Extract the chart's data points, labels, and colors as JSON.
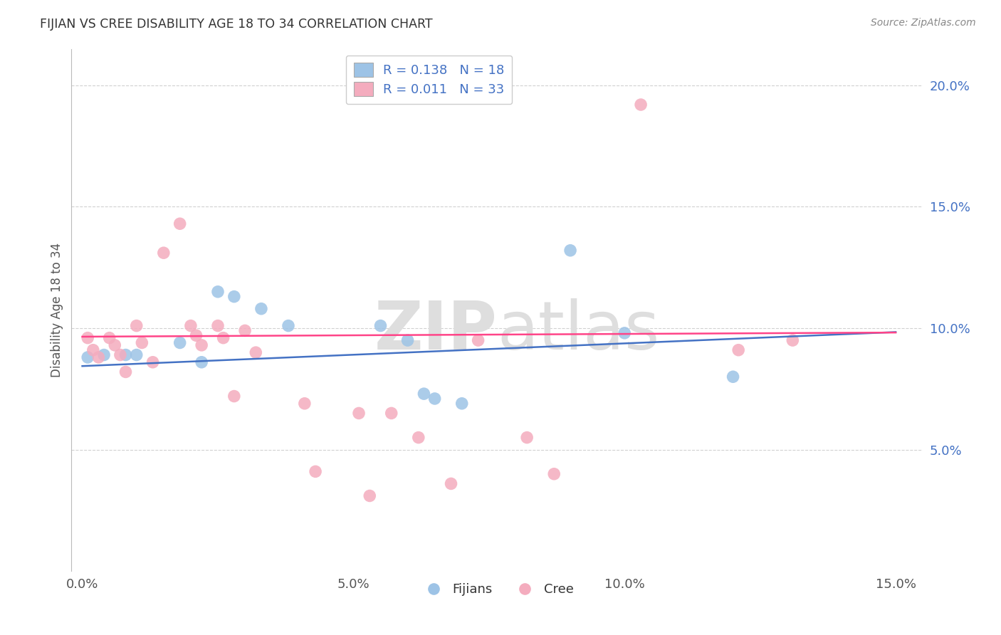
{
  "title": "FIJIAN VS CREE DISABILITY AGE 18 TO 34 CORRELATION CHART",
  "source": "Source: ZipAtlas.com",
  "ylabel": "Disability Age 18 to 34",
  "xlim": [
    -0.002,
    0.155
  ],
  "ylim": [
    0.0,
    0.215
  ],
  "yticks": [
    0.05,
    0.1,
    0.15,
    0.2
  ],
  "xticks": [
    0.0,
    0.05,
    0.1,
    0.15
  ],
  "fijian_R": "0.138",
  "fijian_N": "18",
  "cree_R": "0.011",
  "cree_N": "33",
  "fijian_scatter_color": "#9DC3E6",
  "cree_scatter_color": "#F4ACBE",
  "fijian_line_color": "#4472C4",
  "cree_line_color": "#FF4488",
  "watermark_color": "#DEDEDE",
  "background_color": "#FFFFFF",
  "grid_color": "#CCCCCC",
  "title_color": "#333333",
  "axis_label_color": "#4472C4",
  "tick_label_color": "#555555",
  "source_color": "#888888",
  "fijian_points": [
    [
      0.001,
      0.088
    ],
    [
      0.004,
      0.089
    ],
    [
      0.008,
      0.089
    ],
    [
      0.01,
      0.089
    ],
    [
      0.018,
      0.094
    ],
    [
      0.022,
      0.086
    ],
    [
      0.025,
      0.115
    ],
    [
      0.028,
      0.113
    ],
    [
      0.033,
      0.108
    ],
    [
      0.038,
      0.101
    ],
    [
      0.055,
      0.101
    ],
    [
      0.06,
      0.095
    ],
    [
      0.063,
      0.073
    ],
    [
      0.065,
      0.071
    ],
    [
      0.07,
      0.069
    ],
    [
      0.09,
      0.132
    ],
    [
      0.1,
      0.098
    ],
    [
      0.12,
      0.08
    ]
  ],
  "cree_points": [
    [
      0.001,
      0.096
    ],
    [
      0.002,
      0.091
    ],
    [
      0.003,
      0.088
    ],
    [
      0.005,
      0.096
    ],
    [
      0.006,
      0.093
    ],
    [
      0.007,
      0.089
    ],
    [
      0.008,
      0.082
    ],
    [
      0.01,
      0.101
    ],
    [
      0.011,
      0.094
    ],
    [
      0.013,
      0.086
    ],
    [
      0.015,
      0.131
    ],
    [
      0.018,
      0.143
    ],
    [
      0.02,
      0.101
    ],
    [
      0.021,
      0.097
    ],
    [
      0.022,
      0.093
    ],
    [
      0.025,
      0.101
    ],
    [
      0.026,
      0.096
    ],
    [
      0.028,
      0.072
    ],
    [
      0.03,
      0.099
    ],
    [
      0.032,
      0.09
    ],
    [
      0.041,
      0.069
    ],
    [
      0.043,
      0.041
    ],
    [
      0.051,
      0.065
    ],
    [
      0.053,
      0.031
    ],
    [
      0.057,
      0.065
    ],
    [
      0.062,
      0.055
    ],
    [
      0.068,
      0.036
    ],
    [
      0.073,
      0.095
    ],
    [
      0.082,
      0.055
    ],
    [
      0.087,
      0.04
    ],
    [
      0.103,
      0.192
    ],
    [
      0.121,
      0.091
    ],
    [
      0.131,
      0.095
    ]
  ],
  "fijian_trend_x": [
    0.0,
    0.15
  ],
  "fijian_trend_y": [
    0.0844,
    0.0984
  ],
  "cree_trend_x": [
    0.0,
    0.15
  ],
  "cree_trend_y": [
    0.0965,
    0.0982
  ]
}
